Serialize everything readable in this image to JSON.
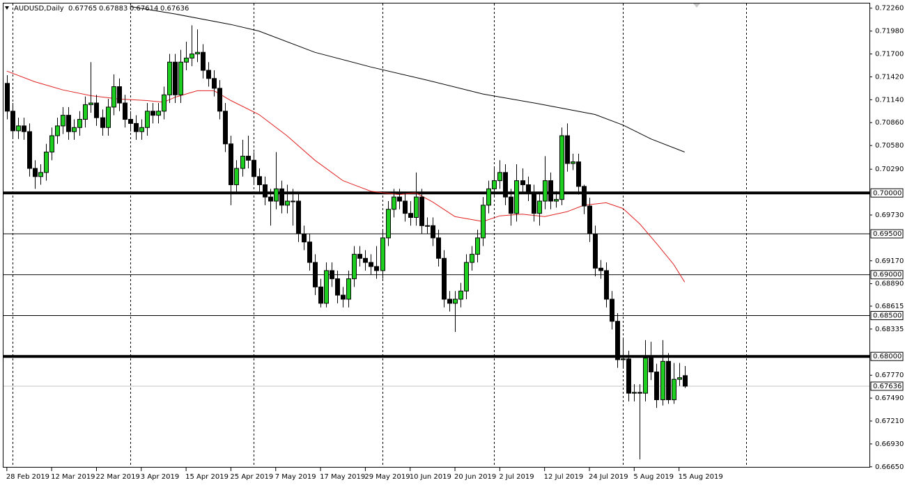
{
  "chart_data": {
    "type": "candlestick",
    "symbol": "AUDUSD,Daily",
    "header_values": [
      0.67765,
      0.67883,
      0.67614,
      0.67636
    ],
    "bull_color": "#1fcf1f",
    "bear_color": "#000000",
    "open": [
      0.7134,
      0.71,
      0.7076,
      0.7082,
      0.7075,
      0.703,
      0.702,
      0.7025,
      0.705,
      0.707,
      0.7082,
      0.7095,
      0.7075,
      0.708,
      0.709,
      0.7108,
      0.711,
      0.7092,
      0.708,
      0.7105,
      0.713,
      0.711,
      0.709,
      0.7085,
      0.7075,
      0.708,
      0.71,
      0.7095,
      0.71,
      0.712,
      0.716,
      0.712,
      0.716,
      0.7165,
      0.717,
      0.7172,
      0.715,
      0.714,
      0.7128,
      0.71,
      0.706,
      0.701,
      0.703,
      0.7045,
      0.704,
      0.702,
      0.701,
      0.6995,
      0.699,
      0.7005,
      0.6985,
      0.699,
      0.699,
      0.695,
      0.694,
      0.6915,
      0.6885,
      0.6865,
      0.6905,
      0.6895,
      0.6875,
      0.687,
      0.6895,
      0.6925,
      0.692,
      0.6915,
      0.691,
      0.6905,
      0.6945,
      0.698,
      0.6995,
      0.699,
      0.6975,
      0.697,
      0.6995,
      0.696,
      0.696,
      0.6945,
      0.692,
      0.687,
      0.6865,
      0.687,
      0.688,
      0.6915,
      0.6925,
      0.6945,
      0.6985,
      0.7005,
      0.7015,
      0.7025,
      0.6995,
      0.6975,
      0.7015,
      0.701,
      0.7,
      0.6975,
      0.699,
      0.7015,
      0.699,
      0.6992,
      0.707,
      0.7036,
      0.7038,
      0.7008,
      0.6984,
      0.695,
      0.6908,
      0.6905,
      0.687,
      0.6843,
      0.6796,
      0.6797,
      0.6755,
      0.6756,
      0.6755,
      0.6798,
      0.6781,
      0.6747,
      0.6794,
      0.6747,
      0.6772,
      0.67765
    ],
    "high": [
      0.7144,
      0.711,
      0.7092,
      0.7092,
      0.7085,
      0.704,
      0.7035,
      0.706,
      0.708,
      0.7092,
      0.7105,
      0.7105,
      0.709,
      0.71,
      0.7118,
      0.716,
      0.712,
      0.7102,
      0.7115,
      0.7145,
      0.714,
      0.712,
      0.71,
      0.7095,
      0.709,
      0.711,
      0.711,
      0.711,
      0.713,
      0.717,
      0.717,
      0.7175,
      0.7185,
      0.7205,
      0.72,
      0.7182,
      0.716,
      0.715,
      0.7138,
      0.711,
      0.707,
      0.704,
      0.7065,
      0.707,
      0.705,
      0.703,
      0.702,
      0.7005,
      0.705,
      0.7015,
      0.701,
      0.7005,
      0.7,
      0.696,
      0.695,
      0.6925,
      0.6895,
      0.6915,
      0.6915,
      0.6905,
      0.6885,
      0.6905,
      0.6935,
      0.6935,
      0.693,
      0.6925,
      0.6935,
      0.6955,
      0.699,
      0.7005,
      0.7005,
      0.7,
      0.699,
      0.7025,
      0.7005,
      0.697,
      0.697,
      0.6955,
      0.693,
      0.688,
      0.688,
      0.689,
      0.6925,
      0.6935,
      0.6955,
      0.6995,
      0.7015,
      0.703,
      0.704,
      0.7035,
      0.7005,
      0.7035,
      0.703,
      0.702,
      0.701,
      0.7,
      0.7045,
      0.7025,
      0.7002,
      0.708,
      0.7085,
      0.7048,
      0.7048,
      0.701,
      0.6994,
      0.696,
      0.6918,
      0.6915,
      0.688,
      0.6853,
      0.6822,
      0.6807,
      0.6766,
      0.6766,
      0.682,
      0.6818,
      0.6791,
      0.682,
      0.6804,
      0.6792,
      0.6792,
      0.67883
    ],
    "low": [
      0.709,
      0.7066,
      0.7066,
      0.7065,
      0.702,
      0.7005,
      0.701,
      0.7015,
      0.704,
      0.706,
      0.7072,
      0.7065,
      0.7065,
      0.707,
      0.708,
      0.7098,
      0.7082,
      0.707,
      0.707,
      0.7095,
      0.71,
      0.708,
      0.7075,
      0.7065,
      0.7065,
      0.707,
      0.7085,
      0.7085,
      0.709,
      0.711,
      0.711,
      0.711,
      0.715,
      0.7155,
      0.716,
      0.714,
      0.713,
      0.7118,
      0.709,
      0.705,
      0.6985,
      0.7,
      0.702,
      0.703,
      0.701,
      0.7,
      0.6985,
      0.696,
      0.698,
      0.6975,
      0.6975,
      0.696,
      0.694,
      0.693,
      0.6905,
      0.6875,
      0.686,
      0.686,
      0.6885,
      0.6865,
      0.686,
      0.686,
      0.6885,
      0.691,
      0.6905,
      0.69,
      0.6895,
      0.6895,
      0.6935,
      0.697,
      0.698,
      0.6965,
      0.696,
      0.696,
      0.695,
      0.695,
      0.6935,
      0.691,
      0.686,
      0.6855,
      0.683,
      0.686,
      0.687,
      0.6905,
      0.6915,
      0.6935,
      0.6975,
      0.6995,
      0.7005,
      0.6985,
      0.696,
      0.6965,
      0.7,
      0.699,
      0.6965,
      0.696,
      0.698,
      0.698,
      0.6982,
      0.6985,
      0.7026,
      0.7028,
      0.6998,
      0.6974,
      0.694,
      0.6898,
      0.6895,
      0.686,
      0.6833,
      0.6786,
      0.6786,
      0.6745,
      0.6745,
      0.6674,
      0.6745,
      0.6771,
      0.6737,
      0.674,
      0.6742,
      0.6742,
      0.6764,
      0.67614
    ],
    "close": [
      0.71,
      0.7076,
      0.7082,
      0.7075,
      0.703,
      0.702,
      0.7025,
      0.705,
      0.707,
      0.7082,
      0.7095,
      0.7075,
      0.708,
      0.709,
      0.7108,
      0.711,
      0.7092,
      0.708,
      0.7105,
      0.713,
      0.711,
      0.709,
      0.7085,
      0.7075,
      0.708,
      0.71,
      0.7095,
      0.71,
      0.712,
      0.716,
      0.712,
      0.716,
      0.7165,
      0.717,
      0.7172,
      0.715,
      0.714,
      0.7128,
      0.71,
      0.706,
      0.701,
      0.703,
      0.7045,
      0.704,
      0.702,
      0.701,
      0.6995,
      0.699,
      0.7005,
      0.6985,
      0.699,
      0.699,
      0.695,
      0.694,
      0.6915,
      0.6885,
      0.6865,
      0.6905,
      0.6895,
      0.6875,
      0.687,
      0.6895,
      0.6925,
      0.692,
      0.6915,
      0.691,
      0.6905,
      0.6945,
      0.698,
      0.6995,
      0.699,
      0.6975,
      0.697,
      0.6995,
      0.696,
      0.696,
      0.6945,
      0.692,
      0.687,
      0.6865,
      0.687,
      0.688,
      0.6915,
      0.6925,
      0.6945,
      0.6985,
      0.7005,
      0.7015,
      0.7025,
      0.6995,
      0.6975,
      0.7015,
      0.701,
      0.7,
      0.6975,
      0.699,
      0.7015,
      0.699,
      0.6992,
      0.707,
      0.7036,
      0.7038,
      0.7008,
      0.6984,
      0.695,
      0.6908,
      0.6905,
      0.687,
      0.6843,
      0.6796,
      0.6797,
      0.6755,
      0.6756,
      0.6755,
      0.6798,
      0.6781,
      0.6747,
      0.6794,
      0.6747,
      0.6772,
      0.6774,
      0.67636
    ],
    "series": [
      {
        "color": "#e02020",
        "x": [
          0,
          5,
          10,
          15,
          20,
          25,
          28,
          30,
          34,
          37,
          40,
          45,
          50,
          55,
          60,
          65,
          70,
          73,
          76,
          80,
          85,
          88,
          92,
          96,
          100,
          103,
          107,
          110,
          113,
          116,
          119,
          121
        ],
        "values": [
          0.7149,
          0.7136,
          0.7126,
          0.7119,
          0.7115,
          0.7113,
          0.7111,
          0.7117,
          0.7125,
          0.7125,
          0.7113,
          0.7096,
          0.707,
          0.704,
          0.7015,
          0.7002,
          0.6998,
          0.7,
          0.6989,
          0.6971,
          0.6965,
          0.6972,
          0.6974,
          0.6971,
          0.6977,
          0.6985,
          0.6988,
          0.6981,
          0.6962,
          0.6938,
          0.6913,
          0.6891
        ]
      },
      {
        "color": "#000000",
        "x": [
          22,
          30,
          40,
          45,
          55,
          65,
          75,
          85,
          95,
          105,
          110,
          115,
          121
        ],
        "values": [
          0.7228,
          0.7219,
          0.7206,
          0.7198,
          0.7172,
          0.7154,
          0.7138,
          0.7121,
          0.7109,
          0.7096,
          0.7083,
          0.7066,
          0.705
        ]
      }
    ],
    "xlim": [
      -0.6,
      154
    ],
    "ylim": [
      0.6664,
      0.7236
    ],
    "xticks": [
      {
        "value": 0,
        "label": "28 Feb 2019"
      },
      {
        "value": 8,
        "label": "12 Mar 2019"
      },
      {
        "value": 16,
        "label": "22 Mar 2019"
      },
      {
        "value": 24,
        "label": "3 Apr 2019"
      },
      {
        "value": 32,
        "label": "15 Apr 2019"
      },
      {
        "value": 40,
        "label": "25 Apr 2019"
      },
      {
        "value": 48,
        "label": "7 May 2019"
      },
      {
        "value": 56,
        "label": "17 May 2019"
      },
      {
        "value": 64,
        "label": "29 May 2019"
      },
      {
        "value": 72,
        "label": "10 Jun 2019"
      },
      {
        "value": 80,
        "label": "20 Jun 2019"
      },
      {
        "value": 88,
        "label": "2 Jul 2019"
      },
      {
        "value": 96,
        "label": "12 Jul 2019"
      },
      {
        "value": 104,
        "label": "24 Jul 2019"
      },
      {
        "value": 112,
        "label": "5 Aug 2019"
      },
      {
        "value": 120,
        "label": "15 Aug 2019"
      }
    ],
    "yticks": [
      {
        "value": 0.7226,
        "label": "0.72260"
      },
      {
        "value": 0.7198,
        "label": "0.71980"
      },
      {
        "value": 0.717,
        "label": "0.71700"
      },
      {
        "value": 0.7142,
        "label": "0.71420"
      },
      {
        "value": 0.7114,
        "label": "0.71140"
      },
      {
        "value": 0.7086,
        "label": "0.70860"
      },
      {
        "value": 0.7058,
        "label": "0.70580"
      },
      {
        "value": 0.7029,
        "label": "0.70290"
      },
      {
        "value": 0.6973,
        "label": "0.69730"
      },
      {
        "value": 0.6917,
        "label": "0.69170"
      },
      {
        "value": 0.6889,
        "label": "0.68890"
      },
      {
        "value": 0.68615,
        "label": "0.68615"
      },
      {
        "value": 0.68335,
        "label": "0.68335"
      },
      {
        "value": 0.6777,
        "label": "0.67770"
      },
      {
        "value": 0.6749,
        "label": "0.67490"
      },
      {
        "value": 0.6721,
        "label": "0.67210"
      },
      {
        "value": 0.6693,
        "label": "0.66930"
      },
      {
        "value": 0.6665,
        "label": "0.66650"
      }
    ],
    "separators": [
      1,
      22,
      44,
      67,
      87,
      110,
      132
    ],
    "levels": [
      {
        "value": 0.7,
        "label": "0.70000",
        "width": 4
      },
      {
        "value": 0.695,
        "label": "0.69500",
        "width": 1
      },
      {
        "value": 0.69,
        "label": "0.69000",
        "width": 1
      },
      {
        "value": 0.685,
        "label": "0.68500",
        "width": 1
      },
      {
        "value": 0.68,
        "label": "0.68000",
        "width": 4
      }
    ],
    "current_price": {
      "value": 0.67636,
      "label": "0.67636"
    }
  }
}
